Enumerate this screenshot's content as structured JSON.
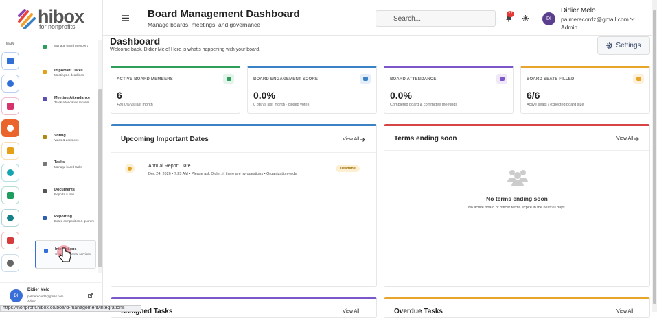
{
  "logo": {
    "name": "hibox",
    "tagline": "for nonprofits"
  },
  "header": {
    "title": "Board Management Dashboard",
    "subtitle": "Manage boards, meetings, and governance",
    "search_placeholder": "Search...",
    "notification_count": "27",
    "user": {
      "initials": "DI",
      "name": "Didier Melo",
      "email": "palmerecordz@gmail.com",
      "role": "Admin"
    }
  },
  "sidebar": {
    "section": "MAIN",
    "nav": [
      {
        "description": "Manage board members"
      },
      {
        "title": "Important Dates",
        "description": "Meetings & deadlines"
      },
      {
        "title": "Meeting Attendance",
        "description": "Track attendance records"
      },
      {
        "title": "Voting",
        "description": "Votes & decisions"
      },
      {
        "title": "Tasks",
        "description": "Manage board tasks"
      },
      {
        "title": "Documents",
        "description": "Reports & files"
      },
      {
        "title": "Reporting",
        "description": "Board composition & quorum"
      },
      {
        "title": "Integrations",
        "description": "Connect external services"
      }
    ],
    "user": {
      "initials": "DI",
      "name": "Didier Melo",
      "email": "palmerecordz@gmail.com",
      "role": "Admin"
    }
  },
  "status_url": "https://nonprofit.hibox.co/board-management/integrations",
  "dashboard": {
    "title": "Dashboard",
    "welcome": "Welcome back, Didier Melo! Here is what's happening with your board.",
    "settings": "Settings",
    "stats": [
      {
        "label": "ACTIVE BOARD MEMBERS",
        "value": "6",
        "note": "+20.0% vs last month"
      },
      {
        "label": "BOARD ENGAGEMENT SCORE",
        "value": "0.0%",
        "note": "0 pts vs last month · closed votes"
      },
      {
        "label": "BOARD ATTENDANCE",
        "value": "0.0%",
        "note": "Completed board & committee meetings"
      },
      {
        "label": "BOARD SEATS FILLED",
        "value": "6/6",
        "note": "Active seats / expected board size"
      }
    ],
    "upcoming": {
      "title": "Upcoming Important Dates",
      "view_all": "View All",
      "items": [
        {
          "title": "Annual Report Date",
          "details": "Dec 24, 2026 • 7:35 AM • Please ask Didier, if there are ny questions • Organization-wide",
          "badge": "Deadline"
        }
      ]
    },
    "terms": {
      "title": "Terms ending soon",
      "view_all": "View All",
      "empty_title": "No terms ending soon",
      "empty_text": "No active board or officer terms expire in the next 90 days."
    },
    "assigned": {
      "title": "Assigned Tasks",
      "view_all": "View All"
    },
    "overdue": {
      "title": "Overdue Tasks",
      "view_all": "View All"
    }
  }
}
